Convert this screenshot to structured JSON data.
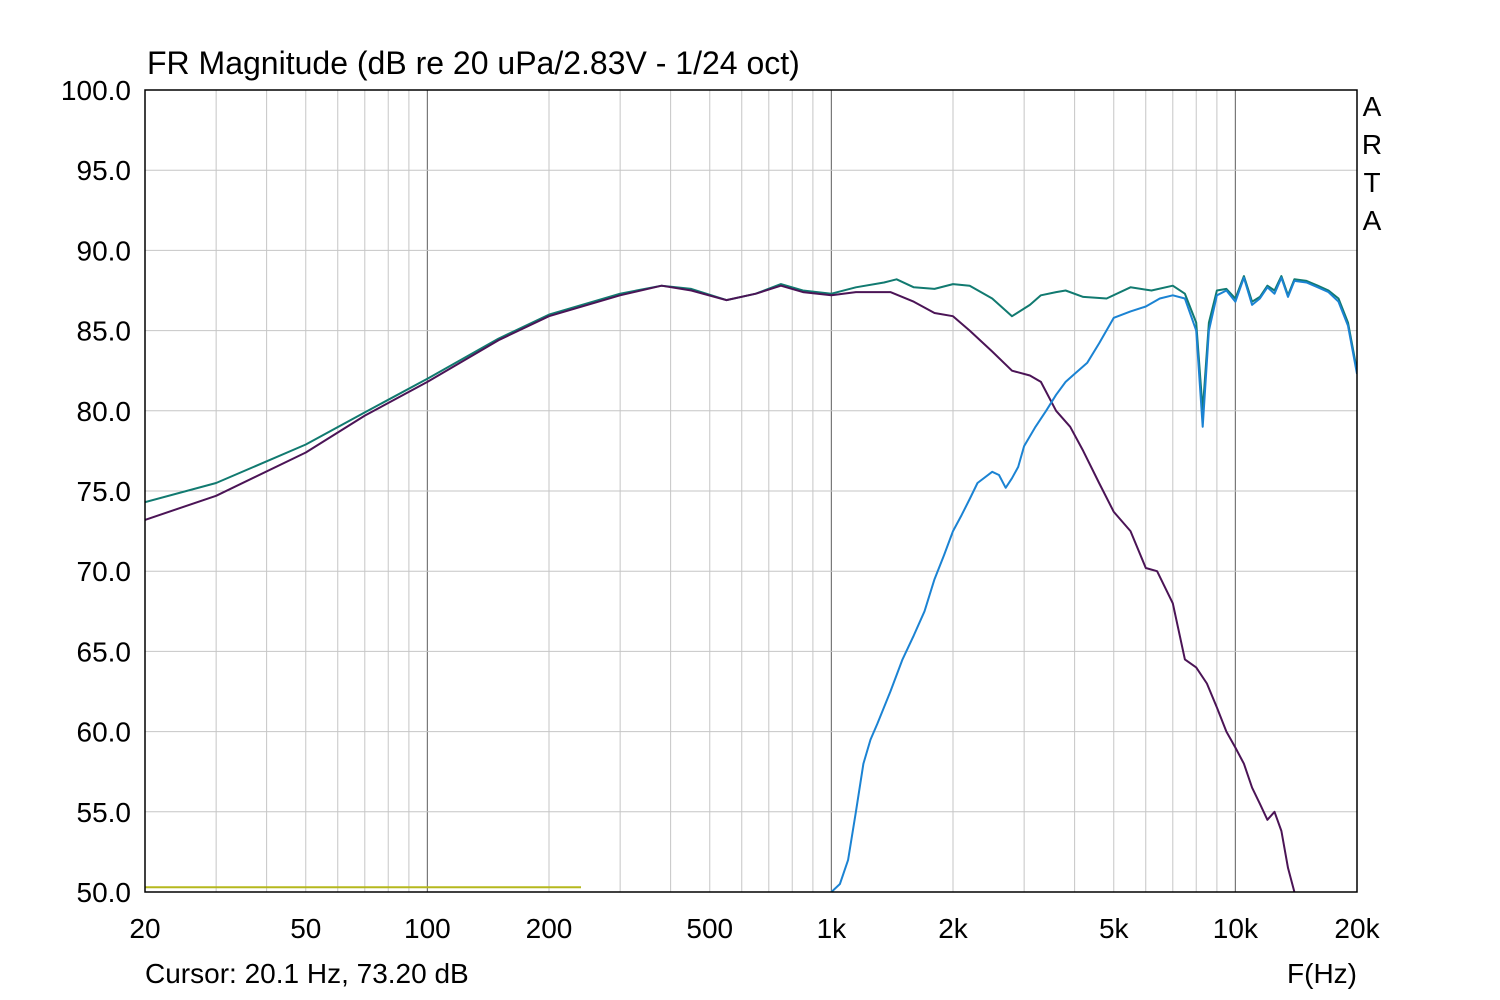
{
  "chart_data": {
    "type": "line",
    "title": "FR Magnitude (dB re 20 uPa/2.83V - 1/24 oct)",
    "xlabel": "F(Hz)",
    "ylabel": "",
    "x_scale": "log",
    "xlim": [
      20,
      20000
    ],
    "ylim": [
      50,
      100
    ],
    "grid": true,
    "x_ticks": [
      {
        "value": 20,
        "label": "20"
      },
      {
        "value": 50,
        "label": "50"
      },
      {
        "value": 100,
        "label": "100"
      },
      {
        "value": 200,
        "label": "200"
      },
      {
        "value": 500,
        "label": "500"
      },
      {
        "value": 1000,
        "label": "1k"
      },
      {
        "value": 2000,
        "label": "2k"
      },
      {
        "value": 5000,
        "label": "5k"
      },
      {
        "value": 10000,
        "label": "10k"
      },
      {
        "value": 20000,
        "label": "20k"
      }
    ],
    "y_ticks": [
      {
        "value": 100,
        "label": "100.0"
      },
      {
        "value": 95,
        "label": "95.0"
      },
      {
        "value": 90,
        "label": "90.0"
      },
      {
        "value": 85,
        "label": "85.0"
      },
      {
        "value": 80,
        "label": "80.0"
      },
      {
        "value": 75,
        "label": "75.0"
      },
      {
        "value": 70,
        "label": "70.0"
      },
      {
        "value": 65,
        "label": "65.0"
      },
      {
        "value": 60,
        "label": "60.0"
      },
      {
        "value": 55,
        "label": "55.0"
      },
      {
        "value": 50,
        "label": "50.0"
      }
    ],
    "brand_letters": [
      "A",
      "R",
      "T",
      "A"
    ],
    "cursor_readout": "Cursor: 20.1 Hz, 73.20 dB",
    "series": [
      {
        "color": "#117a70",
        "x": [
          20,
          30,
          50,
          70,
          100,
          150,
          200,
          300,
          380,
          450,
          550,
          650,
          750,
          850,
          1000,
          1150,
          1350,
          1450,
          1600,
          1800,
          2000,
          2200,
          2500,
          2800,
          3100,
          3300,
          3600,
          3800,
          4200,
          4800,
          5500,
          6200,
          7000,
          7500,
          8000,
          8300,
          8600,
          9000,
          9500,
          10000,
          10500,
          11000,
          11500,
          12000,
          12500,
          13000,
          13500,
          14000,
          15000,
          16000,
          17000,
          18000,
          19000,
          20000
        ],
        "y": [
          74.3,
          75.5,
          77.9,
          79.9,
          82.0,
          84.5,
          86.0,
          87.3,
          87.8,
          87.6,
          86.9,
          87.3,
          87.9,
          87.5,
          87.3,
          87.7,
          88.0,
          88.2,
          87.7,
          87.6,
          87.9,
          87.8,
          87.0,
          85.9,
          86.6,
          87.2,
          87.4,
          87.5,
          87.1,
          87.0,
          87.7,
          87.5,
          87.8,
          87.3,
          85.5,
          80.0,
          85.5,
          87.5,
          87.6,
          87.0,
          88.4,
          86.8,
          87.1,
          87.8,
          87.5,
          88.4,
          87.2,
          88.2,
          88.1,
          87.8,
          87.5,
          87.0,
          85.5,
          82.5
        ]
      },
      {
        "color": "#4b1456",
        "x": [
          20,
          30,
          50,
          70,
          100,
          150,
          200,
          300,
          380,
          450,
          550,
          650,
          750,
          850,
          1000,
          1150,
          1400,
          1600,
          1800,
          2000,
          2200,
          2500,
          2800,
          3100,
          3300,
          3600,
          3900,
          4200,
          4600,
          5000,
          5500,
          6000,
          6400,
          7000,
          7500,
          8000,
          8500,
          9000,
          9500,
          10000,
          10500,
          11000,
          11500,
          12000,
          12500,
          13000,
          13500,
          14000
        ],
        "y": [
          73.2,
          74.7,
          77.4,
          79.7,
          81.8,
          84.4,
          85.9,
          87.2,
          87.8,
          87.5,
          86.9,
          87.3,
          87.8,
          87.4,
          87.2,
          87.4,
          87.4,
          86.8,
          86.1,
          85.9,
          85.0,
          83.7,
          82.5,
          82.2,
          81.8,
          80.0,
          79.0,
          77.5,
          75.5,
          73.7,
          72.5,
          70.2,
          70.0,
          68.0,
          64.5,
          64.0,
          63.0,
          61.5,
          60.0,
          59.0,
          58.0,
          56.5,
          55.5,
          54.5,
          55.0,
          53.8,
          51.5,
          50.0
        ]
      },
      {
        "color": "#1b83d3",
        "x": [
          1000,
          1050,
          1100,
          1150,
          1200,
          1250,
          1300,
          1400,
          1500,
          1600,
          1700,
          1800,
          1900,
          2000,
          2100,
          2200,
          2300,
          2500,
          2600,
          2700,
          2800,
          2900,
          3000,
          3200,
          3400,
          3600,
          3800,
          4000,
          4300,
          4600,
          5000,
          5500,
          6000,
          6500,
          7000,
          7500,
          8000,
          8300,
          8600,
          9000,
          9500,
          10000,
          10500,
          11000,
          11500,
          12000,
          12500,
          13000,
          13500,
          14000,
          15000,
          16000,
          17000,
          18000,
          19000,
          20000
        ],
        "y": [
          50.0,
          50.5,
          52.0,
          55.0,
          58.0,
          59.5,
          60.5,
          62.5,
          64.5,
          66.0,
          67.5,
          69.5,
          71.0,
          72.5,
          73.5,
          74.5,
          75.5,
          76.2,
          76.0,
          75.2,
          75.8,
          76.5,
          77.8,
          79.0,
          80.0,
          81.0,
          81.8,
          82.3,
          83.0,
          84.2,
          85.8,
          86.2,
          86.5,
          87.0,
          87.2,
          87.0,
          85.0,
          79.0,
          85.0,
          87.2,
          87.5,
          86.8,
          88.3,
          86.6,
          87.0,
          87.7,
          87.3,
          88.3,
          87.1,
          88.1,
          88.0,
          87.7,
          87.4,
          86.8,
          85.3,
          82.3
        ]
      },
      {
        "color": "#b5b81e",
        "x": [
          20,
          240
        ],
        "y": [
          50.3,
          50.3
        ]
      }
    ]
  }
}
